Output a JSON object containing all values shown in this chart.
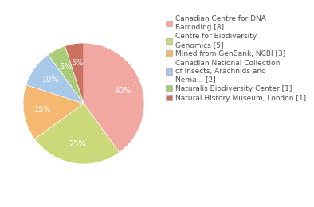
{
  "labels": [
    "Canadian Centre for DNA\nBarcoding [8]",
    "Centre for Biodiversity\nGenomics [5]",
    "Mined from GenBank, NCBI [3]",
    "Canadian National Collection\nof Insects, Arachnids and\nNema... [2]",
    "Naturalis Biodiversity Center [1]",
    "Natural History Museum, London [1]"
  ],
  "values": [
    40,
    25,
    15,
    10,
    5,
    5
  ],
  "colors": [
    "#f0a8a0",
    "#ccd97a",
    "#f5b870",
    "#a8c8e8",
    "#a8cc78",
    "#cc7060"
  ],
  "startangle": 90,
  "background_color": "#ffffff",
  "text_color": "#505050",
  "pct_fontsize": 7.0,
  "legend_fontsize": 6.5
}
